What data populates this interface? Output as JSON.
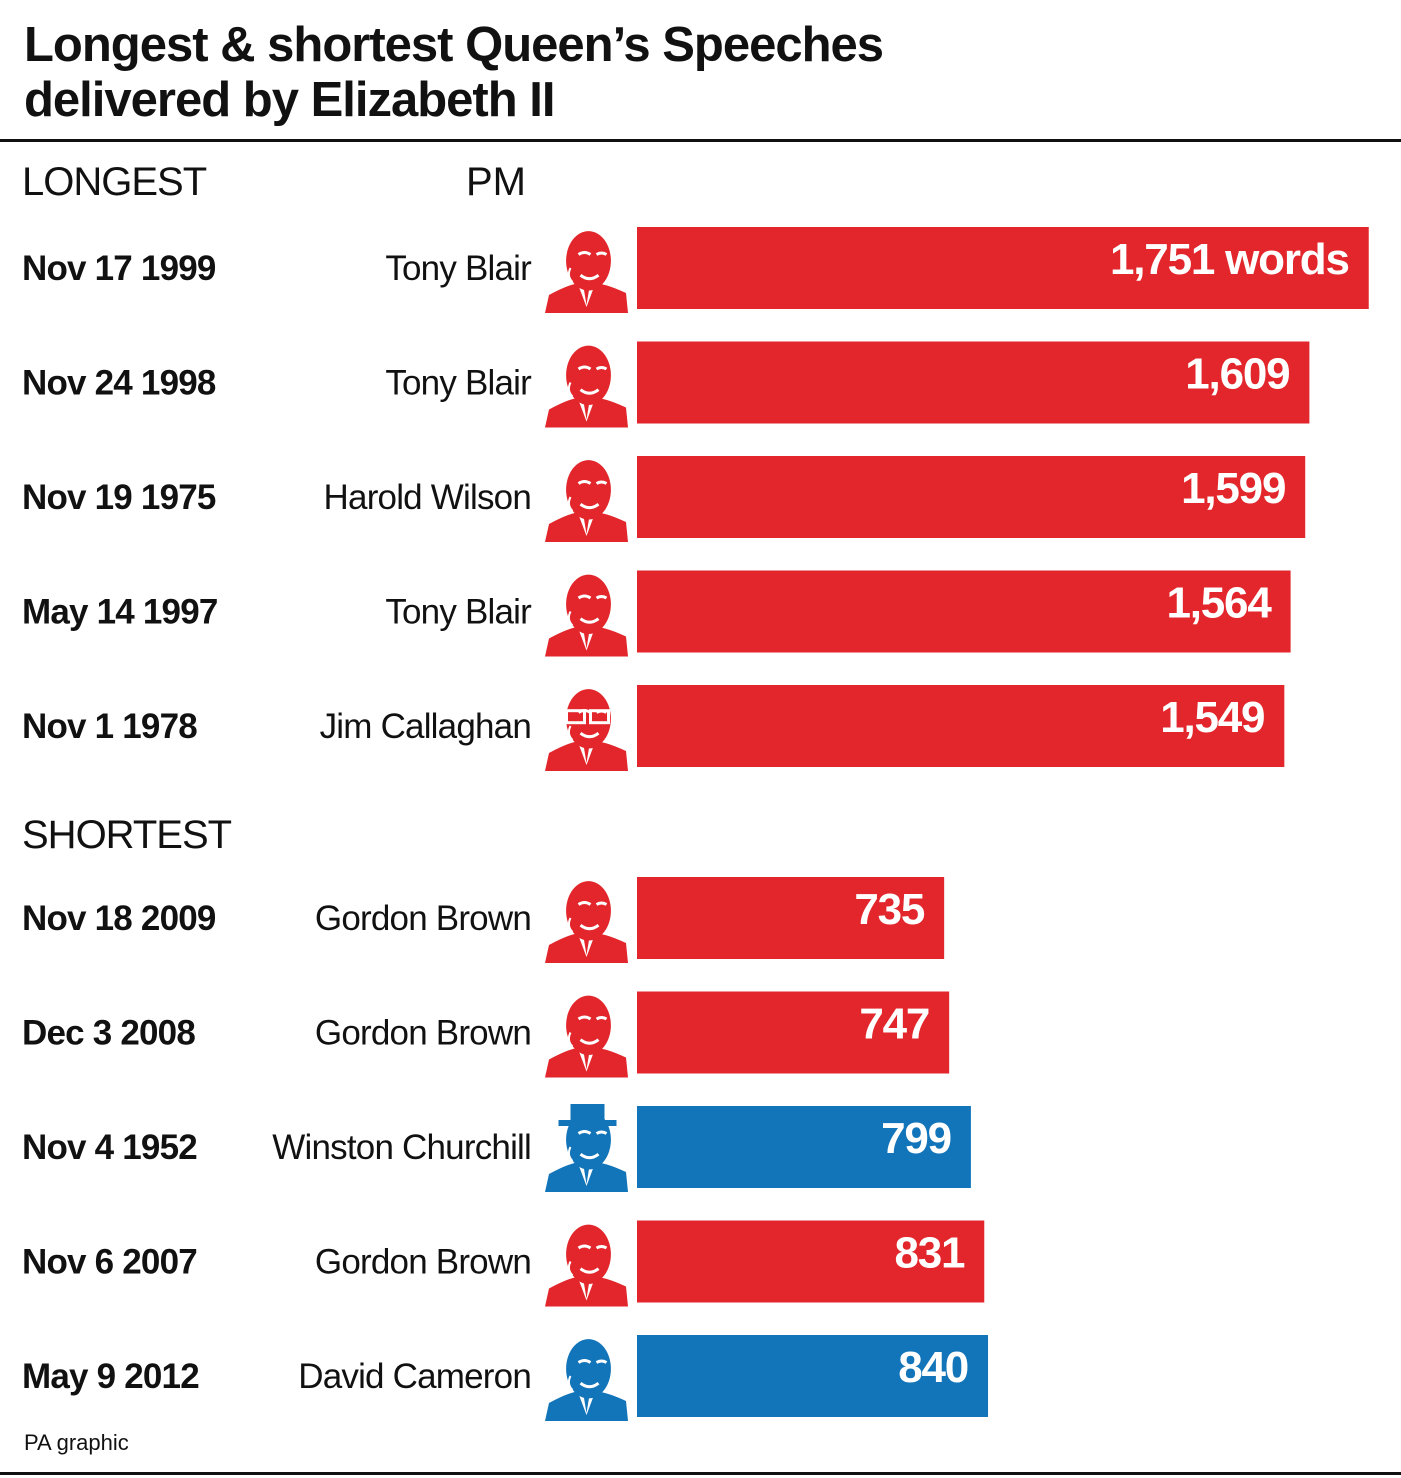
{
  "title_lines": [
    "Longest & shortest Queen’s Speeches",
    "delivered by Elizabeth II"
  ],
  "source": "PA graphic",
  "colors": {
    "labour": "#e2262b",
    "conservative": "#1274b9",
    "text": "#111111"
  },
  "chart_data": {
    "type": "bar",
    "orientation": "horizontal",
    "title": "Longest & shortest Queen’s Speeches delivered by Elizabeth II",
    "column_header": "PM",
    "unit_first_label": "words",
    "groups": [
      {
        "name": "LONGEST",
        "rows": [
          {
            "date": "Nov 17 1999",
            "pm": "Tony Blair",
            "value": 1751,
            "label": "1,751 words",
            "party": "labour",
            "icon": "tony-blair-portrait-icon"
          },
          {
            "date": "Nov 24 1998",
            "pm": "Tony Blair",
            "value": 1609,
            "label": "1,609",
            "party": "labour",
            "icon": "tony-blair-portrait-icon"
          },
          {
            "date": "Nov 19 1975",
            "pm": "Harold Wilson",
            "value": 1599,
            "label": "1,599",
            "party": "labour",
            "icon": "harold-wilson-portrait-icon"
          },
          {
            "date": "May 14 1997",
            "pm": "Tony Blair",
            "value": 1564,
            "label": "1,564",
            "party": "labour",
            "icon": "tony-blair-portrait-icon"
          },
          {
            "date": "Nov 1 1978",
            "pm": "Jim Callaghan",
            "value": 1549,
            "label": "1,549",
            "party": "labour",
            "icon": "jim-callaghan-portrait-icon"
          }
        ]
      },
      {
        "name": "SHORTEST",
        "rows": [
          {
            "date": "Nov 18 2009",
            "pm": "Gordon Brown",
            "value": 735,
            "label": "735",
            "party": "labour",
            "icon": "gordon-brown-portrait-icon"
          },
          {
            "date": "Dec 3 2008",
            "pm": "Gordon Brown",
            "value": 747,
            "label": "747",
            "party": "labour",
            "icon": "gordon-brown-portrait-icon"
          },
          {
            "date": "Nov 4 1952",
            "pm": "Winston Churchill",
            "value": 799,
            "label": "799",
            "party": "conservative",
            "icon": "winston-churchill-portrait-icon"
          },
          {
            "date": "Nov 6 2007",
            "pm": "Gordon Brown",
            "value": 831,
            "label": "831",
            "party": "labour",
            "icon": "gordon-brown-portrait-icon"
          },
          {
            "date": "May 9 2012",
            "pm": "David Cameron",
            "value": 840,
            "label": "840",
            "party": "conservative",
            "icon": "david-cameron-portrait-icon"
          }
        ]
      }
    ]
  }
}
